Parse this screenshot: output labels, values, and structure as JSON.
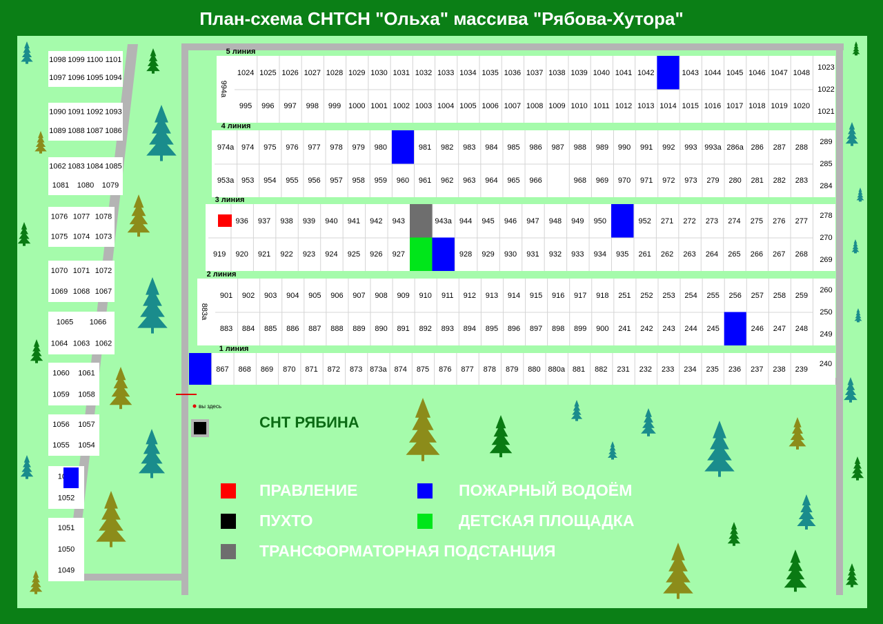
{
  "title": "План-схема СНТСН \"Ольха\" массива \"Рябова-Хутора\"",
  "colors": {
    "background": "#0b7f16",
    "field": "#a5fbab",
    "road": "#b4b4b4",
    "plot": "#ffffff",
    "pravlenie": "#ff0000",
    "pukhto": "#000000",
    "transformer": "#6e6e6e",
    "water": "#0000ff",
    "playground": "#00e61a"
  },
  "lines": [
    {
      "label": "5 линия",
      "top_row": [
        "1024",
        "1025",
        "1026",
        "1027",
        "1028",
        "1029",
        "1030",
        "1031",
        "1032",
        "1033",
        "1034",
        "1035",
        "1036",
        "1037",
        "1038",
        "1039",
        "1040",
        "1041",
        "1042",
        "",
        "1043",
        "1044",
        "1045",
        "1046",
        "1047",
        "1048"
      ],
      "bottom_row": [
        "995",
        "996",
        "997",
        "998",
        "999",
        "1000",
        "1001",
        "1002",
        "1003",
        "1004",
        "1005",
        "1006",
        "1007",
        "1008",
        "1009",
        "1010",
        "1011",
        "1012",
        "1013",
        "1014",
        "1015",
        "1016",
        "1017",
        "1018",
        "1019",
        "1020"
      ],
      "side_label": "994а",
      "right": [
        "1023",
        "1022",
        "1021"
      ]
    },
    {
      "label": "4 линия",
      "top_row": [
        "974а",
        "974",
        "975",
        "976",
        "977",
        "978",
        "979",
        "980",
        "",
        "981",
        "982",
        "983",
        "984",
        "985",
        "986",
        "987",
        "988",
        "989",
        "990",
        "991",
        "992",
        "993",
        "993а",
        "286а",
        "286",
        "287",
        "288"
      ],
      "bottom_row": [
        "953а",
        "953",
        "954",
        "955",
        "956",
        "957",
        "958",
        "959",
        "960",
        "961",
        "962",
        "963",
        "964",
        "965",
        "966",
        "",
        "968",
        "969",
        "970",
        "971",
        "972",
        "973",
        "279",
        "280",
        "281",
        "282",
        "283"
      ],
      "right": [
        "289",
        "285",
        "284"
      ]
    },
    {
      "label": "3 линия",
      "top_row": [
        "",
        "936",
        "937",
        "938",
        "939",
        "940",
        "941",
        "942",
        "943",
        "",
        "943а",
        "944",
        "945",
        "946",
        "947",
        "948",
        "949",
        "950",
        "",
        "952",
        "271",
        "272",
        "273",
        "274",
        "275",
        "276",
        "277"
      ],
      "bottom_row": [
        "919",
        "920",
        "921",
        "922",
        "923",
        "924",
        "925",
        "926",
        "927",
        "",
        "",
        "928",
        "929",
        "930",
        "931",
        "932",
        "933",
        "934",
        "935",
        "261",
        "262",
        "263",
        "264",
        "265",
        "266",
        "267",
        "268"
      ],
      "right": [
        "278",
        "270",
        "269"
      ]
    },
    {
      "label": "2 линия",
      "top_row": [
        "901",
        "902",
        "903",
        "904",
        "905",
        "906",
        "907",
        "908",
        "909",
        "910",
        "911",
        "912",
        "913",
        "914",
        "915",
        "916",
        "917",
        "918",
        "251",
        "252",
        "253",
        "254",
        "255",
        "256",
        "257",
        "258",
        "259"
      ],
      "bottom_row": [
        "883",
        "884",
        "885",
        "886",
        "887",
        "888",
        "889",
        "890",
        "891",
        "892",
        "893",
        "894",
        "895",
        "896",
        "897",
        "898",
        "899",
        "900",
        "241",
        "242",
        "243",
        "244",
        "245",
        "",
        "246",
        "247",
        "248"
      ],
      "side_label": "883а",
      "right": [
        "260",
        "250",
        "249"
      ]
    },
    {
      "label": "1 линия",
      "row": [
        "",
        "867",
        "868",
        "869",
        "870",
        "871",
        "872",
        "873",
        "873а",
        "874",
        "875",
        "876",
        "877",
        "878",
        "879",
        "880",
        "880а",
        "881",
        "882",
        "231",
        "232",
        "233",
        "234",
        "235",
        "236",
        "237",
        "238",
        "239"
      ],
      "right": [
        "240"
      ]
    }
  ],
  "left_plots": [
    {
      "rows": [
        [
          "1098",
          "1099",
          "1100",
          "1101"
        ],
        [
          "1097",
          "1096",
          "1095",
          "1094"
        ]
      ]
    },
    {
      "rows": [
        [
          "1090",
          "1091",
          "1092",
          "1093"
        ],
        [
          "1089",
          "1088",
          "1087",
          "1086"
        ]
      ]
    },
    {
      "rows": [
        [
          "1062",
          "1083",
          "1084",
          "1085"
        ],
        [
          "1081",
          "1080",
          "1079"
        ]
      ]
    },
    {
      "rows": [
        [
          "1076",
          "1077",
          "1078"
        ],
        [
          "1075",
          "1074",
          "1073"
        ]
      ]
    },
    {
      "rows": [
        [
          "1070",
          "1071",
          "1072"
        ],
        [
          "1069",
          "1068",
          "1067"
        ]
      ]
    },
    {
      "rows": [
        [
          "1065",
          "1066"
        ],
        [
          "1064",
          "1063",
          "1062"
        ]
      ]
    },
    {
      "rows": [
        [
          "1060",
          "1061"
        ],
        [
          "1059",
          "1058"
        ]
      ]
    },
    {
      "rows": [
        [
          "1056",
          "1057"
        ],
        [
          "1055",
          "1054"
        ]
      ]
    },
    {
      "rows": [
        [
          "1053"
        ],
        [
          "1052"
        ]
      ]
    },
    {
      "rows": [
        [
          "1051"
        ],
        [
          "1050"
        ],
        [
          "1049"
        ]
      ]
    }
  ],
  "you_are_here": "вы здесь",
  "neighbor": "СНТ РЯБИНА",
  "legend": [
    {
      "label": "ПРАВЛЕНИЕ",
      "color_key": "pravlenie"
    },
    {
      "label": "ПУХТО",
      "color_key": "pukhto"
    },
    {
      "label": "ТРАНСФОРМАТОРНАЯ ПОДСТАНЦИЯ",
      "color_key": "transformer"
    },
    {
      "label": "ПОЖАРНЫЙ ВОДОЁМ",
      "color_key": "water"
    },
    {
      "label": "ДЕТСКАЯ ПЛОЩАДКА",
      "color_key": "playground"
    }
  ],
  "icons": [
    "tree-icon"
  ]
}
